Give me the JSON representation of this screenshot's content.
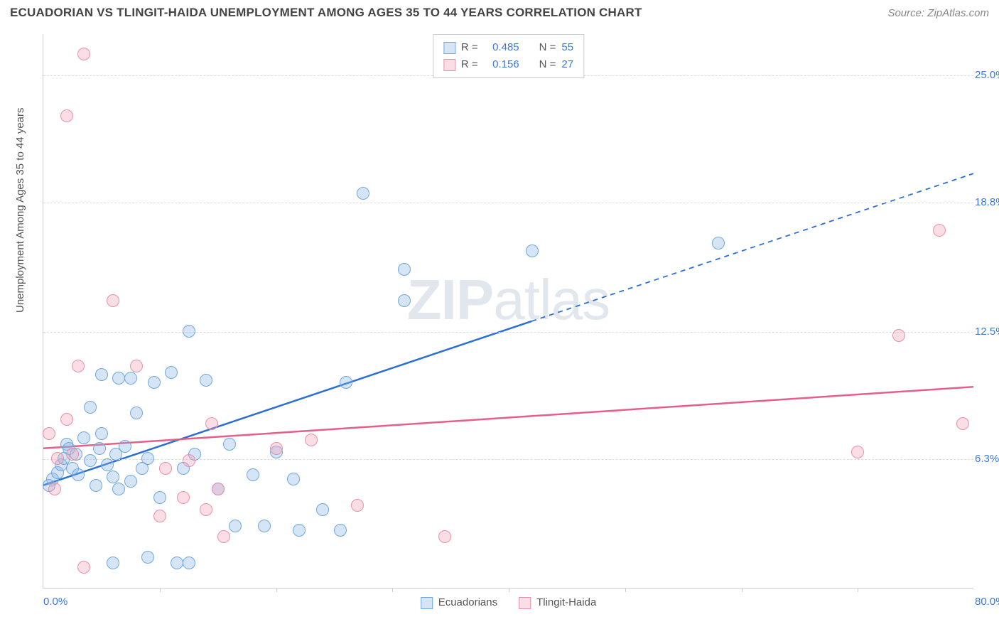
{
  "title": "ECUADORIAN VS TLINGIT-HAIDA UNEMPLOYMENT AMONG AGES 35 TO 44 YEARS CORRELATION CHART",
  "source": "Source: ZipAtlas.com",
  "ylabel": "Unemployment Among Ages 35 to 44 years",
  "watermark_bold": "ZIP",
  "watermark_light": "atlas",
  "chart": {
    "type": "scatter-correlation",
    "xlim": [
      0,
      80
    ],
    "ylim": [
      0,
      27
    ],
    "x_axis_label_left": "0.0%",
    "x_axis_label_right": "80.0%",
    "x_axis_label_color": "#3b78d8",
    "y_ticks": [
      {
        "value": 6.3,
        "label": "6.3%"
      },
      {
        "value": 12.5,
        "label": "12.5%"
      },
      {
        "value": 18.8,
        "label": "18.8%"
      },
      {
        "value": 25.0,
        "label": "25.0%"
      }
    ],
    "y_tick_color": "#3b78d8",
    "x_tick_positions": [
      10,
      20,
      30,
      40,
      50,
      60,
      70
    ],
    "grid_color": "#dddddd",
    "background_color": "#ffffff",
    "marker_radius": 9,
    "series": [
      {
        "name": "Ecuadorians",
        "r": "0.485",
        "n": "55",
        "fill": "rgba(135, 180, 230, 0.35)",
        "stroke": "#6fa8dc",
        "line_color": "#2a6fd6",
        "trend": {
          "x1": 0,
          "y1": 5.0,
          "x2": 42,
          "y2": 13.0,
          "x1_ext": 42,
          "y1_ext": 13.0,
          "x2_ext": 80,
          "y2_ext": 20.2
        },
        "points": [
          [
            0.5,
            5.0
          ],
          [
            0.8,
            5.3
          ],
          [
            1.2,
            5.6
          ],
          [
            1.5,
            6.0
          ],
          [
            1.8,
            6.3
          ],
          [
            2.0,
            7.0
          ],
          [
            2.2,
            6.8
          ],
          [
            2.5,
            5.8
          ],
          [
            2.8,
            6.5
          ],
          [
            3.0,
            5.5
          ],
          [
            3.5,
            7.3
          ],
          [
            4.0,
            6.2
          ],
          [
            4.5,
            5.0
          ],
          [
            4.8,
            6.8
          ],
          [
            5.0,
            7.5
          ],
          [
            5.5,
            6.0
          ],
          [
            6.0,
            5.4
          ],
          [
            6.2,
            6.5
          ],
          [
            6.5,
            4.8
          ],
          [
            7.0,
            6.9
          ],
          [
            7.5,
            5.2
          ],
          [
            8.0,
            8.5
          ],
          [
            8.5,
            5.8
          ],
          [
            9.0,
            6.3
          ],
          [
            4.0,
            8.8
          ],
          [
            5.0,
            10.4
          ],
          [
            6.5,
            10.2
          ],
          [
            7.5,
            10.2
          ],
          [
            9.5,
            10.0
          ],
          [
            11.0,
            10.5
          ],
          [
            12.5,
            12.5
          ],
          [
            14.0,
            10.1
          ],
          [
            15.0,
            4.8
          ],
          [
            16.0,
            7.0
          ],
          [
            16.5,
            3.0
          ],
          [
            18.0,
            5.5
          ],
          [
            19.0,
            3.0
          ],
          [
            20.0,
            6.6
          ],
          [
            21.5,
            5.3
          ],
          [
            12.0,
            5.8
          ],
          [
            13.0,
            6.5
          ],
          [
            10.0,
            4.4
          ],
          [
            11.5,
            1.2
          ],
          [
            12.5,
            1.2
          ],
          [
            9.0,
            1.5
          ],
          [
            6.0,
            1.2
          ],
          [
            22.0,
            2.8
          ],
          [
            24.0,
            3.8
          ],
          [
            25.5,
            2.8
          ],
          [
            26.0,
            10.0
          ],
          [
            27.5,
            19.2
          ],
          [
            31.0,
            14.0
          ],
          [
            31.0,
            15.5
          ],
          [
            42.0,
            16.4
          ],
          [
            58.0,
            16.8
          ]
        ]
      },
      {
        "name": "Tlingit-Haida",
        "r": "0.156",
        "n": "27",
        "fill": "rgba(240, 160, 180, 0.35)",
        "stroke": "#e890a8",
        "line_color": "#e65f87",
        "trend": {
          "x1": 0,
          "y1": 6.8,
          "x2": 80,
          "y2": 9.8
        },
        "points": [
          [
            0.5,
            7.5
          ],
          [
            1.0,
            4.8
          ],
          [
            1.2,
            6.3
          ],
          [
            2.0,
            8.2
          ],
          [
            2.0,
            23.0
          ],
          [
            2.5,
            6.5
          ],
          [
            3.0,
            10.8
          ],
          [
            3.5,
            26.0
          ],
          [
            3.5,
            1.0
          ],
          [
            6.0,
            14.0
          ],
          [
            8.0,
            10.8
          ],
          [
            10.0,
            3.5
          ],
          [
            10.5,
            5.8
          ],
          [
            12.0,
            4.4
          ],
          [
            12.5,
            6.2
          ],
          [
            14.0,
            3.8
          ],
          [
            14.5,
            8.0
          ],
          [
            15.0,
            4.8
          ],
          [
            15.5,
            2.5
          ],
          [
            20.0,
            6.8
          ],
          [
            23.0,
            7.2
          ],
          [
            27.0,
            4.0
          ],
          [
            34.5,
            2.5
          ],
          [
            70.0,
            6.6
          ],
          [
            73.5,
            12.3
          ],
          [
            77.0,
            17.4
          ],
          [
            79.0,
            8.0
          ]
        ]
      }
    ],
    "legend_top": {
      "r_label": "R =",
      "n_label": "N =",
      "value_color": "#3b78d8"
    },
    "legend_bottom_labels": [
      "Ecuadorians",
      "Tlingit-Haida"
    ]
  }
}
